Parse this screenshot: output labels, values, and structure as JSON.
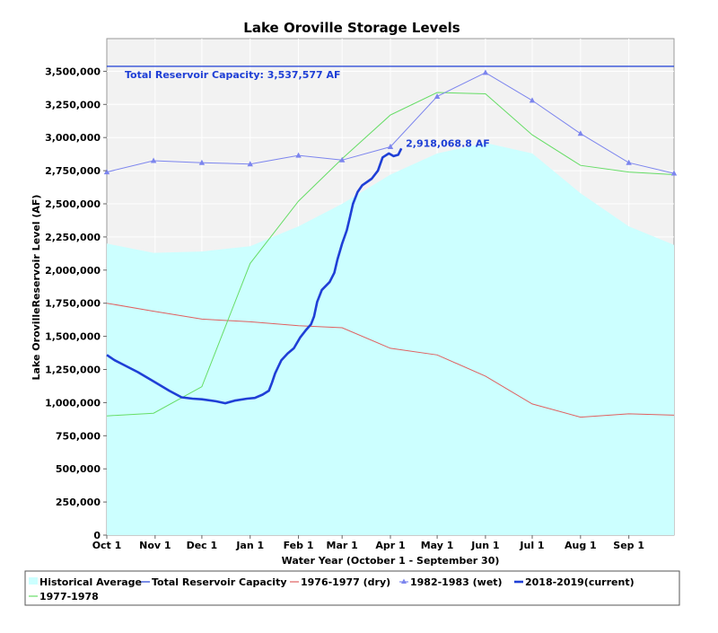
{
  "chart_data": {
    "type": "line",
    "title": "Lake Oroville Storage Levels",
    "xlabel": "Water Year (October 1 - September 30)",
    "ylabel": "Lake OrovilleReservoir Level (AF)",
    "x_ticks": [
      "Oct 1",
      "Nov 1",
      "Dec 1",
      "Jan 1",
      "Feb 1",
      "Mar 1",
      "Apr 1",
      "May 1",
      "Jun 1",
      "Jul 1",
      "Aug 1",
      "Sep 1"
    ],
    "y_ticks": [
      "0",
      "250,000",
      "500,000",
      "750,000",
      "1,000,000",
      "1,250,000",
      "1,500,000",
      "1,750,000",
      "2,000,000",
      "2,250,000",
      "2,500,000",
      "2,750,000",
      "3,000,000",
      "3,250,000",
      "3,500,000"
    ],
    "ylim": [
      0,
      3700000
    ],
    "xlim_days": [
      0,
      364
    ],
    "grid": true,
    "legend_position": "bottom",
    "annotations": [
      {
        "text": "Total Reservoir Capacity: 3,537,577 AF",
        "ref": "capacity"
      },
      {
        "text": "2,918,068.8 AF",
        "ref": "current"
      }
    ],
    "series": [
      {
        "name": "Historical Average",
        "style": "area",
        "color": "#ccffff",
        "points": [
          [
            0,
            2200000
          ],
          [
            30,
            2130000
          ],
          [
            61,
            2140000
          ],
          [
            92,
            2180000
          ],
          [
            123,
            2330000
          ],
          [
            151,
            2500000
          ],
          [
            182,
            2720000
          ],
          [
            212,
            2880000
          ],
          [
            243,
            2960000
          ],
          [
            273,
            2880000
          ],
          [
            304,
            2580000
          ],
          [
            335,
            2330000
          ],
          [
            364,
            2190000
          ]
        ]
      },
      {
        "name": "Total Reservoir Capacity",
        "style": "hline",
        "color": "#1f3fd6",
        "value": 3537577
      },
      {
        "name": "1976-1977 (dry)",
        "style": "line",
        "color": "#e06060",
        "points": [
          [
            0,
            1750000
          ],
          [
            30,
            1690000
          ],
          [
            61,
            1630000
          ],
          [
            92,
            1610000
          ],
          [
            123,
            1580000
          ],
          [
            151,
            1565000
          ],
          [
            182,
            1410000
          ],
          [
            212,
            1360000
          ],
          [
            243,
            1200000
          ],
          [
            273,
            990000
          ],
          [
            304,
            890000
          ],
          [
            335,
            915000
          ],
          [
            364,
            905000
          ]
        ]
      },
      {
        "name": "1982-1983 (wet)",
        "style": "line-markers",
        "color": "#7c85ee",
        "points": [
          [
            0,
            2740000
          ],
          [
            30,
            2825000
          ],
          [
            61,
            2810000
          ],
          [
            92,
            2800000
          ],
          [
            123,
            2865000
          ],
          [
            151,
            2830000
          ],
          [
            182,
            2930000
          ],
          [
            212,
            3310000
          ],
          [
            243,
            3490000
          ],
          [
            273,
            3280000
          ],
          [
            304,
            3030000
          ],
          [
            335,
            2810000
          ],
          [
            364,
            2730000
          ]
        ]
      },
      {
        "name": "2018-2019(current)",
        "style": "bold-line",
        "color": "#1f3fd6",
        "points": [
          [
            0,
            1360000
          ],
          [
            5,
            1320000
          ],
          [
            10,
            1290000
          ],
          [
            20,
            1230000
          ],
          [
            30,
            1160000
          ],
          [
            40,
            1090000
          ],
          [
            48,
            1040000
          ],
          [
            55,
            1030000
          ],
          [
            61,
            1025000
          ],
          [
            70,
            1010000
          ],
          [
            76,
            995000
          ],
          [
            82,
            1015000
          ],
          [
            90,
            1030000
          ],
          [
            95,
            1035000
          ],
          [
            100,
            1060000
          ],
          [
            104,
            1090000
          ],
          [
            106,
            1150000
          ],
          [
            108,
            1220000
          ],
          [
            110,
            1270000
          ],
          [
            112,
            1320000
          ],
          [
            116,
            1370000
          ],
          [
            120,
            1410000
          ],
          [
            124,
            1490000
          ],
          [
            128,
            1550000
          ],
          [
            131,
            1590000
          ],
          [
            133,
            1650000
          ],
          [
            135,
            1760000
          ],
          [
            138,
            1850000
          ],
          [
            143,
            1910000
          ],
          [
            146,
            1980000
          ],
          [
            148,
            2080000
          ],
          [
            151,
            2200000
          ],
          [
            154,
            2300000
          ],
          [
            156,
            2400000
          ],
          [
            158,
            2500000
          ],
          [
            161,
            2590000
          ],
          [
            164,
            2640000
          ],
          [
            170,
            2690000
          ],
          [
            174,
            2750000
          ],
          [
            177,
            2850000
          ],
          [
            181,
            2880000
          ],
          [
            184,
            2860000
          ],
          [
            187,
            2870000
          ],
          [
            189,
            2918069
          ]
        ]
      },
      {
        "name": "1977-1978",
        "style": "line",
        "color": "#66dd66",
        "points": [
          [
            0,
            900000
          ],
          [
            30,
            920000
          ],
          [
            61,
            1120000
          ],
          [
            92,
            2050000
          ],
          [
            123,
            2520000
          ],
          [
            151,
            2840000
          ],
          [
            182,
            3170000
          ],
          [
            212,
            3340000
          ],
          [
            243,
            3330000
          ],
          [
            273,
            3020000
          ],
          [
            304,
            2790000
          ],
          [
            335,
            2740000
          ],
          [
            364,
            2720000
          ]
        ]
      }
    ]
  }
}
